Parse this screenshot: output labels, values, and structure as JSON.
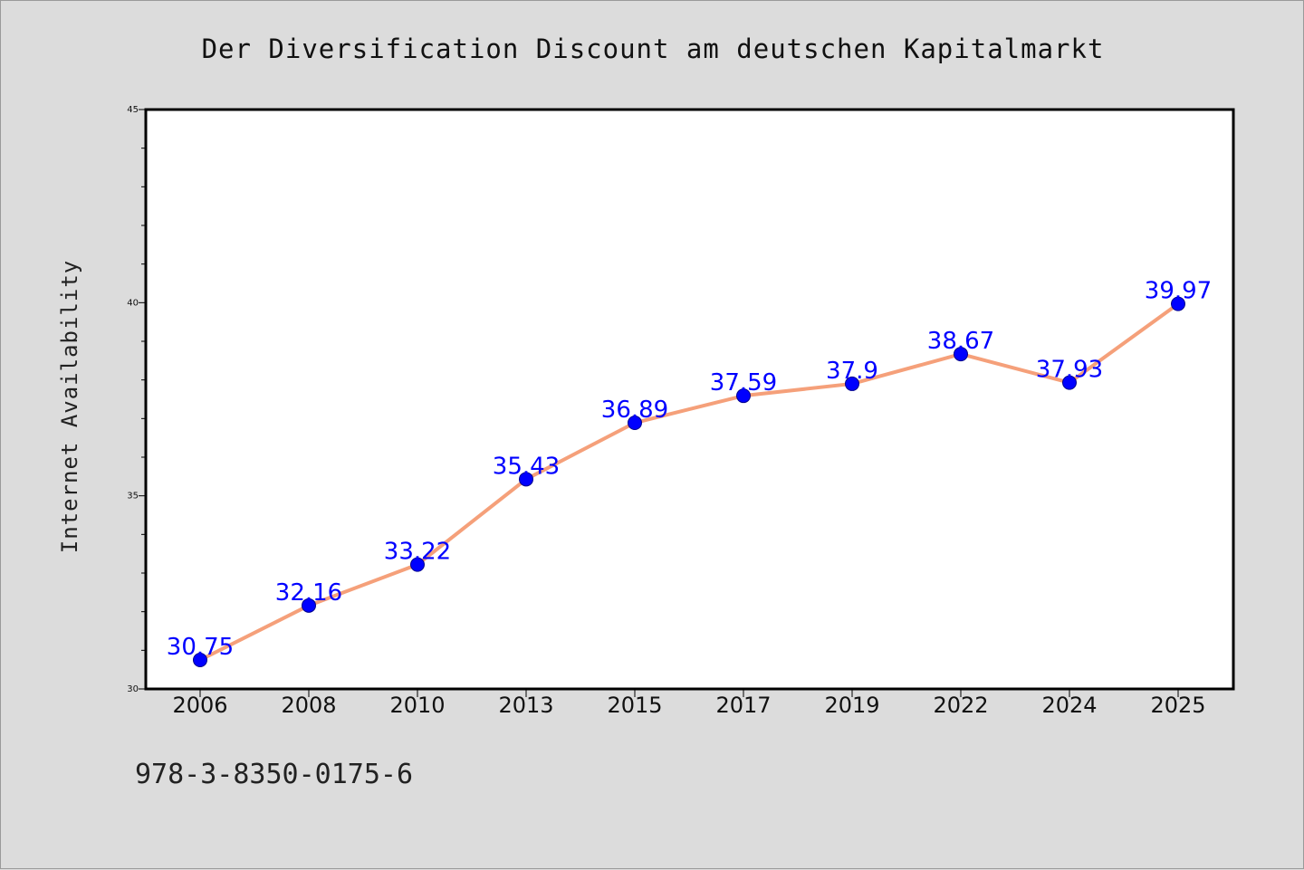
{
  "chart_data": {
    "type": "line",
    "title": "Der Diversification Discount am deutschen Kapitalmarkt",
    "xlabel": "",
    "ylabel": "Internet Availability",
    "categories": [
      "2006",
      "2008",
      "2010",
      "2013",
      "2015",
      "2017",
      "2019",
      "2022",
      "2024",
      "2025"
    ],
    "series": [
      {
        "values": [
          30.75,
          32.16,
          33.22,
          35.43,
          36.89,
          37.59,
          37.9,
          38.67,
          37.93,
          39.97
        ],
        "labels": [
          "30.75",
          "32.16",
          "33.22",
          "35.43",
          "36.89",
          "37.59",
          "37.9",
          "38.67",
          "37.93",
          "39.97"
        ]
      }
    ],
    "ylim": [
      30,
      45
    ],
    "yticks": [
      "30",
      "35",
      "40",
      "45"
    ],
    "grid": false,
    "legend": "none",
    "colors": {
      "line": "#f5a07a",
      "marker": "#0000ff",
      "label": "#0000ff",
      "background": "#dcdcdc",
      "plot_background": "#ffffff"
    }
  },
  "footnote": "978-3-8350-0175-6"
}
